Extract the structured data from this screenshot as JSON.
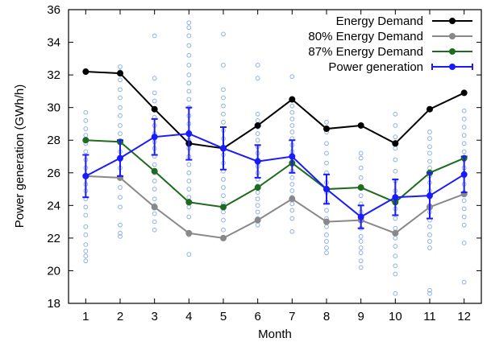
{
  "chart_data": {
    "type": "line",
    "xlabel": "Month",
    "ylabel": "Power generation (GWh/h)",
    "xlim": [
      0.5,
      12.5
    ],
    "ylim": [
      18,
      36
    ],
    "x_ticks": [
      1,
      2,
      3,
      4,
      5,
      6,
      7,
      8,
      9,
      10,
      11,
      12
    ],
    "y_ticks": [
      18,
      20,
      22,
      24,
      26,
      28,
      30,
      32,
      34,
      36
    ],
    "legend_position": "top-right",
    "series": [
      {
        "name": "Energy Demand",
        "color": "#000000",
        "x": [
          1,
          2,
          3,
          4,
          5,
          6,
          7,
          8,
          9,
          10,
          11,
          12
        ],
        "y": [
          32.2,
          32.1,
          29.9,
          27.8,
          27.5,
          28.9,
          30.5,
          28.7,
          28.9,
          27.8,
          29.9,
          30.9
        ]
      },
      {
        "name": "80% Energy Demand",
        "color": "#888888",
        "x": [
          1,
          2,
          3,
          4,
          5,
          6,
          7,
          8,
          9,
          10,
          11,
          12
        ],
        "y": [
          25.8,
          25.7,
          23.9,
          22.3,
          22.0,
          23.1,
          24.4,
          23.0,
          23.1,
          22.3,
          23.9,
          24.7
        ]
      },
      {
        "name": "87% Energy Demand",
        "color": "#1e6b1e",
        "x": [
          1,
          2,
          3,
          4,
          5,
          6,
          7,
          8,
          9,
          10,
          11,
          12
        ],
        "y": [
          28.0,
          27.9,
          26.1,
          24.2,
          23.9,
          25.1,
          26.6,
          25.0,
          25.1,
          24.2,
          26.0,
          26.9
        ]
      },
      {
        "name": "Power generation",
        "color": "#1a1aff",
        "x": [
          1,
          2,
          3,
          4,
          5,
          6,
          7,
          8,
          9,
          10,
          11,
          12
        ],
        "y": [
          25.8,
          26.9,
          28.2,
          28.4,
          27.5,
          26.7,
          27.0,
          25.0,
          23.3,
          24.5,
          24.6,
          25.9
        ],
        "err": [
          1.3,
          1.1,
          1.1,
          1.6,
          1.3,
          1.0,
          1.0,
          0.9,
          0.7,
          1.1,
          1.4,
          1.1
        ]
      }
    ],
    "scatter": {
      "color": "#8fb0e6",
      "points": [
        [
          1,
          29.7
        ],
        [
          1,
          29.2
        ],
        [
          1,
          28.7
        ],
        [
          1,
          28.3
        ],
        [
          1,
          27.8
        ],
        [
          1,
          27.3
        ],
        [
          1,
          26.8
        ],
        [
          1,
          26.3
        ],
        [
          1,
          25.8
        ],
        [
          1,
          25.3
        ],
        [
          1,
          24.9
        ],
        [
          1,
          24.4
        ],
        [
          1,
          23.9
        ],
        [
          1,
          23.4
        ],
        [
          1,
          22.7
        ],
        [
          1,
          22.2
        ],
        [
          1,
          21.6
        ],
        [
          1,
          21.2
        ],
        [
          1,
          20.9
        ],
        [
          1,
          20.6
        ],
        [
          2,
          32.5
        ],
        [
          2,
          32.2
        ],
        [
          2,
          31.7
        ],
        [
          2,
          31.1
        ],
        [
          2,
          30.6
        ],
        [
          2,
          30.0
        ],
        [
          2,
          29.5
        ],
        [
          2,
          28.9
        ],
        [
          2,
          28.4
        ],
        [
          2,
          27.9
        ],
        [
          2,
          27.3
        ],
        [
          2,
          26.8
        ],
        [
          2,
          26.3
        ],
        [
          2,
          25.7
        ],
        [
          2,
          25.1
        ],
        [
          2,
          24.5
        ],
        [
          2,
          23.9
        ],
        [
          2,
          22.8
        ],
        [
          2,
          22.3
        ],
        [
          2,
          22.1
        ],
        [
          3,
          34.4
        ],
        [
          3,
          31.8
        ],
        [
          3,
          30.9
        ],
        [
          3,
          30.4
        ],
        [
          3,
          29.9
        ],
        [
          3,
          29.4
        ],
        [
          3,
          28.9
        ],
        [
          3,
          28.4
        ],
        [
          3,
          27.9
        ],
        [
          3,
          27.5
        ],
        [
          3,
          27.0
        ],
        [
          3,
          26.5
        ],
        [
          3,
          26.0
        ],
        [
          3,
          25.5
        ],
        [
          3,
          25.0
        ],
        [
          3,
          24.4
        ],
        [
          3,
          24.0
        ],
        [
          3,
          23.5
        ],
        [
          3,
          23.0
        ],
        [
          3,
          22.5
        ],
        [
          4,
          35.2
        ],
        [
          4,
          34.9
        ],
        [
          4,
          34.4
        ],
        [
          4,
          33.8
        ],
        [
          4,
          33.2
        ],
        [
          4,
          32.6
        ],
        [
          4,
          32.0
        ],
        [
          4,
          31.5
        ],
        [
          4,
          31.0
        ],
        [
          4,
          30.5
        ],
        [
          4,
          30.0
        ],
        [
          4,
          29.5
        ],
        [
          4,
          29.0
        ],
        [
          4,
          28.5
        ],
        [
          4,
          28.0
        ],
        [
          4,
          27.5
        ],
        [
          4,
          27.0
        ],
        [
          4,
          26.5
        ],
        [
          4,
          26.0
        ],
        [
          4,
          25.5
        ],
        [
          4,
          25.0
        ],
        [
          4,
          24.5
        ],
        [
          4,
          23.9
        ],
        [
          4,
          23.3
        ],
        [
          4,
          22.2
        ],
        [
          4,
          21.0
        ],
        [
          5,
          34.5
        ],
        [
          5,
          32.6
        ],
        [
          5,
          31.1
        ],
        [
          5,
          30.6
        ],
        [
          5,
          30.1
        ],
        [
          5,
          29.6
        ],
        [
          5,
          29.1
        ],
        [
          5,
          28.6
        ],
        [
          5,
          28.1
        ],
        [
          5,
          27.6
        ],
        [
          5,
          27.1
        ],
        [
          5,
          26.6
        ],
        [
          5,
          26.1
        ],
        [
          5,
          25.6
        ],
        [
          5,
          25.1
        ],
        [
          5,
          24.6
        ],
        [
          5,
          24.1
        ],
        [
          5,
          23.6
        ],
        [
          5,
          23.1
        ],
        [
          5,
          22.5
        ],
        [
          6,
          32.6
        ],
        [
          6,
          31.8
        ],
        [
          6,
          29.6
        ],
        [
          6,
          29.2
        ],
        [
          6,
          28.8
        ],
        [
          6,
          28.4
        ],
        [
          6,
          28.0
        ],
        [
          6,
          27.6
        ],
        [
          6,
          27.2
        ],
        [
          6,
          26.8
        ],
        [
          6,
          26.4
        ],
        [
          6,
          26.0
        ],
        [
          6,
          25.6
        ],
        [
          6,
          25.2
        ],
        [
          6,
          24.8
        ],
        [
          6,
          24.4
        ],
        [
          6,
          24.0
        ],
        [
          6,
          23.6
        ],
        [
          6,
          23.2
        ],
        [
          6,
          22.8
        ],
        [
          7,
          31.9
        ],
        [
          7,
          30.1
        ],
        [
          7,
          29.7
        ],
        [
          7,
          29.3
        ],
        [
          7,
          28.9
        ],
        [
          7,
          28.5
        ],
        [
          7,
          28.1
        ],
        [
          7,
          27.7
        ],
        [
          7,
          27.3
        ],
        [
          7,
          26.9
        ],
        [
          7,
          26.5
        ],
        [
          7,
          26.1
        ],
        [
          7,
          25.7
        ],
        [
          7,
          25.3
        ],
        [
          7,
          24.9
        ],
        [
          7,
          24.5
        ],
        [
          7,
          24.1
        ],
        [
          7,
          23.7
        ],
        [
          7,
          23.2
        ],
        [
          7,
          22.4
        ],
        [
          8,
          29.1
        ],
        [
          8,
          28.5
        ],
        [
          8,
          27.8
        ],
        [
          8,
          27.2
        ],
        [
          8,
          26.6
        ],
        [
          8,
          26.0
        ],
        [
          8,
          25.4
        ],
        [
          8,
          24.8
        ],
        [
          8,
          24.2
        ],
        [
          8,
          23.7
        ],
        [
          8,
          23.2
        ],
        [
          8,
          22.7
        ],
        [
          8,
          22.2
        ],
        [
          8,
          21.8
        ],
        [
          8,
          21.4
        ],
        [
          8,
          21.1
        ],
        [
          9,
          27.2
        ],
        [
          9,
          26.9
        ],
        [
          9,
          26.3
        ],
        [
          9,
          25.7
        ],
        [
          9,
          25.1
        ],
        [
          9,
          24.6
        ],
        [
          9,
          24.1
        ],
        [
          9,
          23.6
        ],
        [
          9,
          23.1
        ],
        [
          9,
          22.6
        ],
        [
          9,
          22.1
        ],
        [
          9,
          21.8
        ],
        [
          9,
          21.4
        ],
        [
          9,
          21.1
        ],
        [
          9,
          20.6
        ],
        [
          9,
          20.2
        ],
        [
          10,
          29.6
        ],
        [
          10,
          28.9
        ],
        [
          10,
          28.2
        ],
        [
          10,
          27.5
        ],
        [
          10,
          26.8
        ],
        [
          10,
          26.1
        ],
        [
          10,
          25.5
        ],
        [
          10,
          24.9
        ],
        [
          10,
          24.4
        ],
        [
          10,
          23.8
        ],
        [
          10,
          23.2
        ],
        [
          10,
          22.6
        ],
        [
          10,
          22.0
        ],
        [
          10,
          21.5
        ],
        [
          10,
          20.9
        ],
        [
          10,
          20.3
        ],
        [
          10,
          19.8
        ],
        [
          10,
          18.6
        ],
        [
          11,
          28.5
        ],
        [
          11,
          28.1
        ],
        [
          11,
          27.6
        ],
        [
          11,
          27.2
        ],
        [
          11,
          26.7
        ],
        [
          11,
          26.3
        ],
        [
          11,
          25.8
        ],
        [
          11,
          25.4
        ],
        [
          11,
          24.9
        ],
        [
          11,
          24.5
        ],
        [
          11,
          24.0
        ],
        [
          11,
          23.6
        ],
        [
          11,
          23.1
        ],
        [
          11,
          22.7
        ],
        [
          11,
          22.2
        ],
        [
          11,
          21.8
        ],
        [
          11,
          21.4
        ],
        [
          11,
          18.8
        ],
        [
          11,
          18.6
        ],
        [
          12,
          29.8
        ],
        [
          12,
          29.3
        ],
        [
          12,
          28.8
        ],
        [
          12,
          28.3
        ],
        [
          12,
          27.8
        ],
        [
          12,
          27.3
        ],
        [
          12,
          26.8
        ],
        [
          12,
          26.3
        ],
        [
          12,
          25.8
        ],
        [
          12,
          25.3
        ],
        [
          12,
          24.8
        ],
        [
          12,
          24.3
        ],
        [
          12,
          23.8
        ],
        [
          12,
          23.3
        ],
        [
          12,
          22.8
        ],
        [
          12,
          21.7
        ],
        [
          12,
          19.3
        ]
      ]
    }
  }
}
